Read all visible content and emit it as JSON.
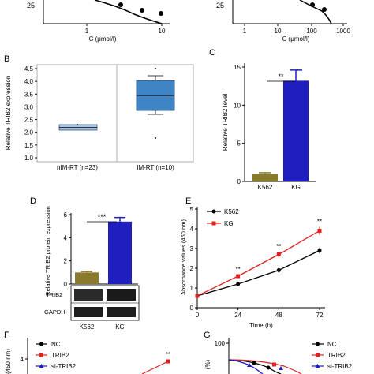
{
  "panels": {
    "A_left": {
      "xlabel": "C (μmol/l)",
      "ytick_25": "25",
      "xticks": [
        "1",
        "10"
      ],
      "points": [
        [
          3.0,
          21
        ],
        [
          5.2,
          17
        ],
        [
          7.5,
          14
        ]
      ]
    },
    "A_right": {
      "xlabel": "C (μmol/l)",
      "ytick_25": "25",
      "xticks": [
        "1",
        "10",
        "100",
        "1000"
      ],
      "points": [
        [
          90,
          23
        ],
        [
          200,
          16
        ]
      ]
    },
    "B": {
      "letter": "B",
      "ylabel": "Relative TRIB2 expression",
      "yticks": [
        "1.0",
        "1.5",
        "2.0",
        "2.5",
        "3.0",
        "3.5",
        "4.0",
        "4.5"
      ],
      "categories": [
        "nIM-RT (n=23)",
        "IM-RT (n=10)"
      ]
    },
    "C": {
      "letter": "C",
      "ylabel": "Relative TRIB2 level",
      "yticks": [
        "0",
        "5",
        "10",
        "15"
      ],
      "categories": [
        "K562",
        "KG"
      ],
      "sig": "**"
    },
    "D": {
      "letter": "D",
      "ylabel": "Relative TRIB2 protein expression",
      "yticks": [
        "0",
        "2",
        "4",
        "6"
      ],
      "categories": [
        "K562",
        "KG"
      ],
      "sig": "***",
      "blot_labels": [
        "TRIB2",
        "GAPDH"
      ]
    },
    "E": {
      "letter": "E",
      "ylabel": "Absorbance values (450 nm)",
      "xlabel": "Time (h)",
      "yticks": [
        "0",
        "1",
        "2",
        "3",
        "4",
        "5"
      ],
      "xticks": [
        "0",
        "24",
        "48",
        "72"
      ],
      "legend": [
        "K562",
        "KG"
      ],
      "sig": [
        "**",
        "**",
        "**"
      ]
    },
    "F": {
      "letter": "F",
      "ylabel_partial": "(450 nm)",
      "ytick": "4",
      "legend": [
        "NC",
        "TRIB2",
        "si-TRIB2"
      ],
      "sig": "**"
    },
    "G": {
      "letter": "G",
      "ylabel_partial": "(%)",
      "ytick": "100",
      "legend": [
        "NC",
        "TRIB2",
        "si-TRIB2"
      ]
    }
  },
  "colors": {
    "k562": "#000000",
    "kg": "#e02020",
    "nc": "#000000",
    "trib2": "#e02020",
    "sitrib2": "#1a1acc",
    "bar_k562": "#8a7a2e",
    "bar_kg": "#1f1fbf",
    "box_fill_b1": "#a9c4e0",
    "box_fill_b2": "#3f84c4",
    "panel_B_bg": "#ffffff"
  },
  "chart_data": [
    {
      "type": "bar",
      "panel": "C",
      "categories": [
        "K562",
        "KG"
      ],
      "values": [
        1.0,
        13.2
      ],
      "errors": [
        0.15,
        1.4
      ],
      "ylabel": "Relative TRIB2 level",
      "ylim": [
        0,
        15
      ]
    },
    {
      "type": "bar",
      "panel": "D",
      "categories": [
        "K562",
        "KG"
      ],
      "values": [
        1.0,
        5.4
      ],
      "errors": [
        0.08,
        0.35
      ],
      "ylabel": "Relative TRIB2 protein expression",
      "ylim": [
        0,
        6
      ]
    },
    {
      "type": "line",
      "panel": "E",
      "x": [
        0,
        24,
        48,
        72
      ],
      "series": [
        {
          "name": "K562",
          "values": [
            0.6,
            1.2,
            1.9,
            2.9
          ],
          "errors": [
            0.05,
            0.08,
            0.12,
            0.15
          ]
        },
        {
          "name": "KG",
          "values": [
            0.6,
            1.6,
            2.7,
            3.9
          ],
          "errors": [
            0.05,
            0.08,
            0.15,
            0.2
          ]
        }
      ],
      "xlabel": "Time (h)",
      "ylabel": "Absorbance values (450 nm)",
      "ylim": [
        0,
        5
      ],
      "xlim": [
        0,
        72
      ]
    },
    {
      "type": "box",
      "panel": "B",
      "categories": [
        "nIM-RT (n=23)",
        "IM-RT (n=10)"
      ],
      "boxes": [
        {
          "q1": 1.8,
          "median": 1.87,
          "q3": 1.95,
          "whisker_low": 1.8,
          "whisker_high": 1.95,
          "outliers": [
            1.95
          ]
        },
        {
          "q1": 2.85,
          "median": 3.2,
          "q3": 3.9,
          "whisker_low": 2.5,
          "whisker_high": 4.0,
          "outliers": [
            1.4,
            4.3
          ]
        }
      ],
      "ylabel": "Relative TRIB2 expression",
      "ylim": [
        1.0,
        4.5
      ]
    }
  ]
}
